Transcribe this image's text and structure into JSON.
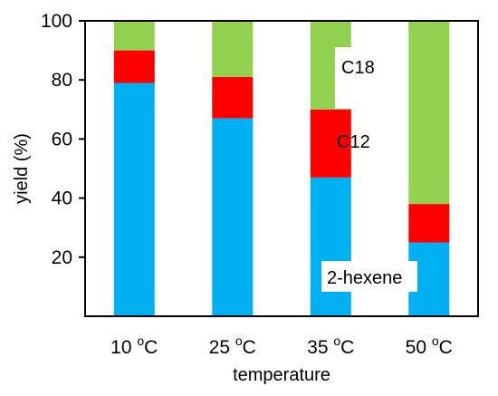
{
  "chart_data": {
    "type": "bar",
    "stacked": true,
    "categories": [
      "10 °C",
      "25 °C",
      "35 °C",
      "50 °C"
    ],
    "category_parts": [
      {
        "num": "10",
        "sup": "o",
        "unit": "C"
      },
      {
        "num": "25",
        "sup": "o",
        "unit": "C"
      },
      {
        "num": "35",
        "sup": "o",
        "unit": "C"
      },
      {
        "num": "50",
        "sup": "o",
        "unit": "C"
      }
    ],
    "series": [
      {
        "name": "2-hexene",
        "values": [
          79,
          67,
          47,
          25
        ],
        "color": "#00b0f0"
      },
      {
        "name": "C12",
        "values": [
          11,
          14,
          23,
          13
        ],
        "color": "#ff0000"
      },
      {
        "name": "C18",
        "values": [
          10,
          19,
          30,
          62
        ],
        "color": "#92d050"
      }
    ],
    "xlabel": "temperature",
    "ylabel": "yield (%)",
    "ylim": [
      0,
      100
    ],
    "yticks": [
      "20",
      "40",
      "60",
      "80",
      "100"
    ],
    "grid": false,
    "legend": "inline labels on third bar"
  }
}
